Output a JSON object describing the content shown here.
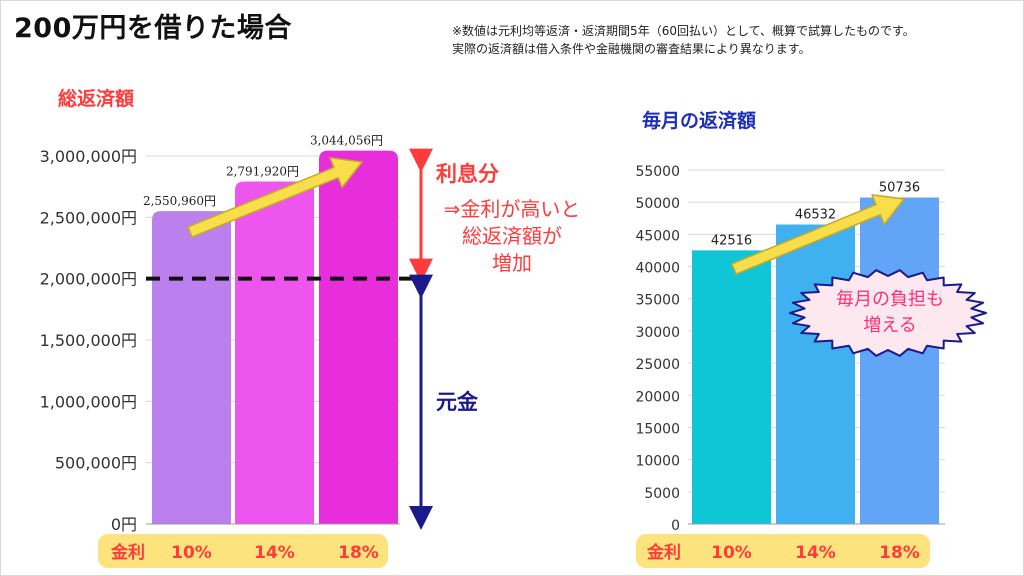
{
  "title": "200万円を借りた場合",
  "notes": [
    "※数値は元利均等返済・返済期間5年（60回払い）として、概算で試算したものです。",
    "実際の返済額は借入条件や金融機関の審査結果により異なります。"
  ],
  "annotations": {
    "interest_label": "利息分",
    "interest_desc": [
      "⇒金利が高いと",
      "総返済額が",
      "増加"
    ],
    "principal_label": "元金",
    "monthly_burden": [
      "毎月の負担も",
      "増える"
    ]
  },
  "colors": {
    "accent_red": "#ff3b3b",
    "navy": "#1a1a8c",
    "label_blue": "#1e2fb8",
    "yellow_box": "#fde37e",
    "arrow_yellow": "#f7de4a"
  },
  "chart_data": [
    {
      "type": "bar",
      "title": "総返済額",
      "categories": [
        "10%",
        "14%",
        "18%"
      ],
      "category_header": "金利",
      "values": [
        2550960,
        2791920,
        3044056
      ],
      "data_labels": [
        "2,550,960円",
        "2,791,920円",
        "3,044,056円"
      ],
      "ylim": [
        0,
        3000000
      ],
      "yticks": [
        "0円",
        "500,000円",
        "1,000,000円",
        "1,500,000円",
        "2,000,000円",
        "2,500,000円",
        "3,000,000円"
      ],
      "reference_line": 2000000,
      "colors": [
        "#bb80ee",
        "#ee55ee",
        "#e82ddb"
      ],
      "grid": true
    },
    {
      "type": "bar",
      "title": "毎月の返済額",
      "categories": [
        "10%",
        "14%",
        "18%"
      ],
      "category_header": "金利",
      "values": [
        42516,
        46532,
        50736
      ],
      "data_labels": [
        "42516",
        "46532",
        "50736"
      ],
      "ylim": [
        0,
        55000
      ],
      "yticks": [
        "0",
        "5000",
        "10000",
        "15000",
        "20000",
        "25000",
        "30000",
        "35000",
        "40000",
        "45000",
        "50000",
        "55000"
      ],
      "colors": [
        "#0ec6d6",
        "#3fb1f0",
        "#62a4f6"
      ],
      "grid": true
    }
  ]
}
